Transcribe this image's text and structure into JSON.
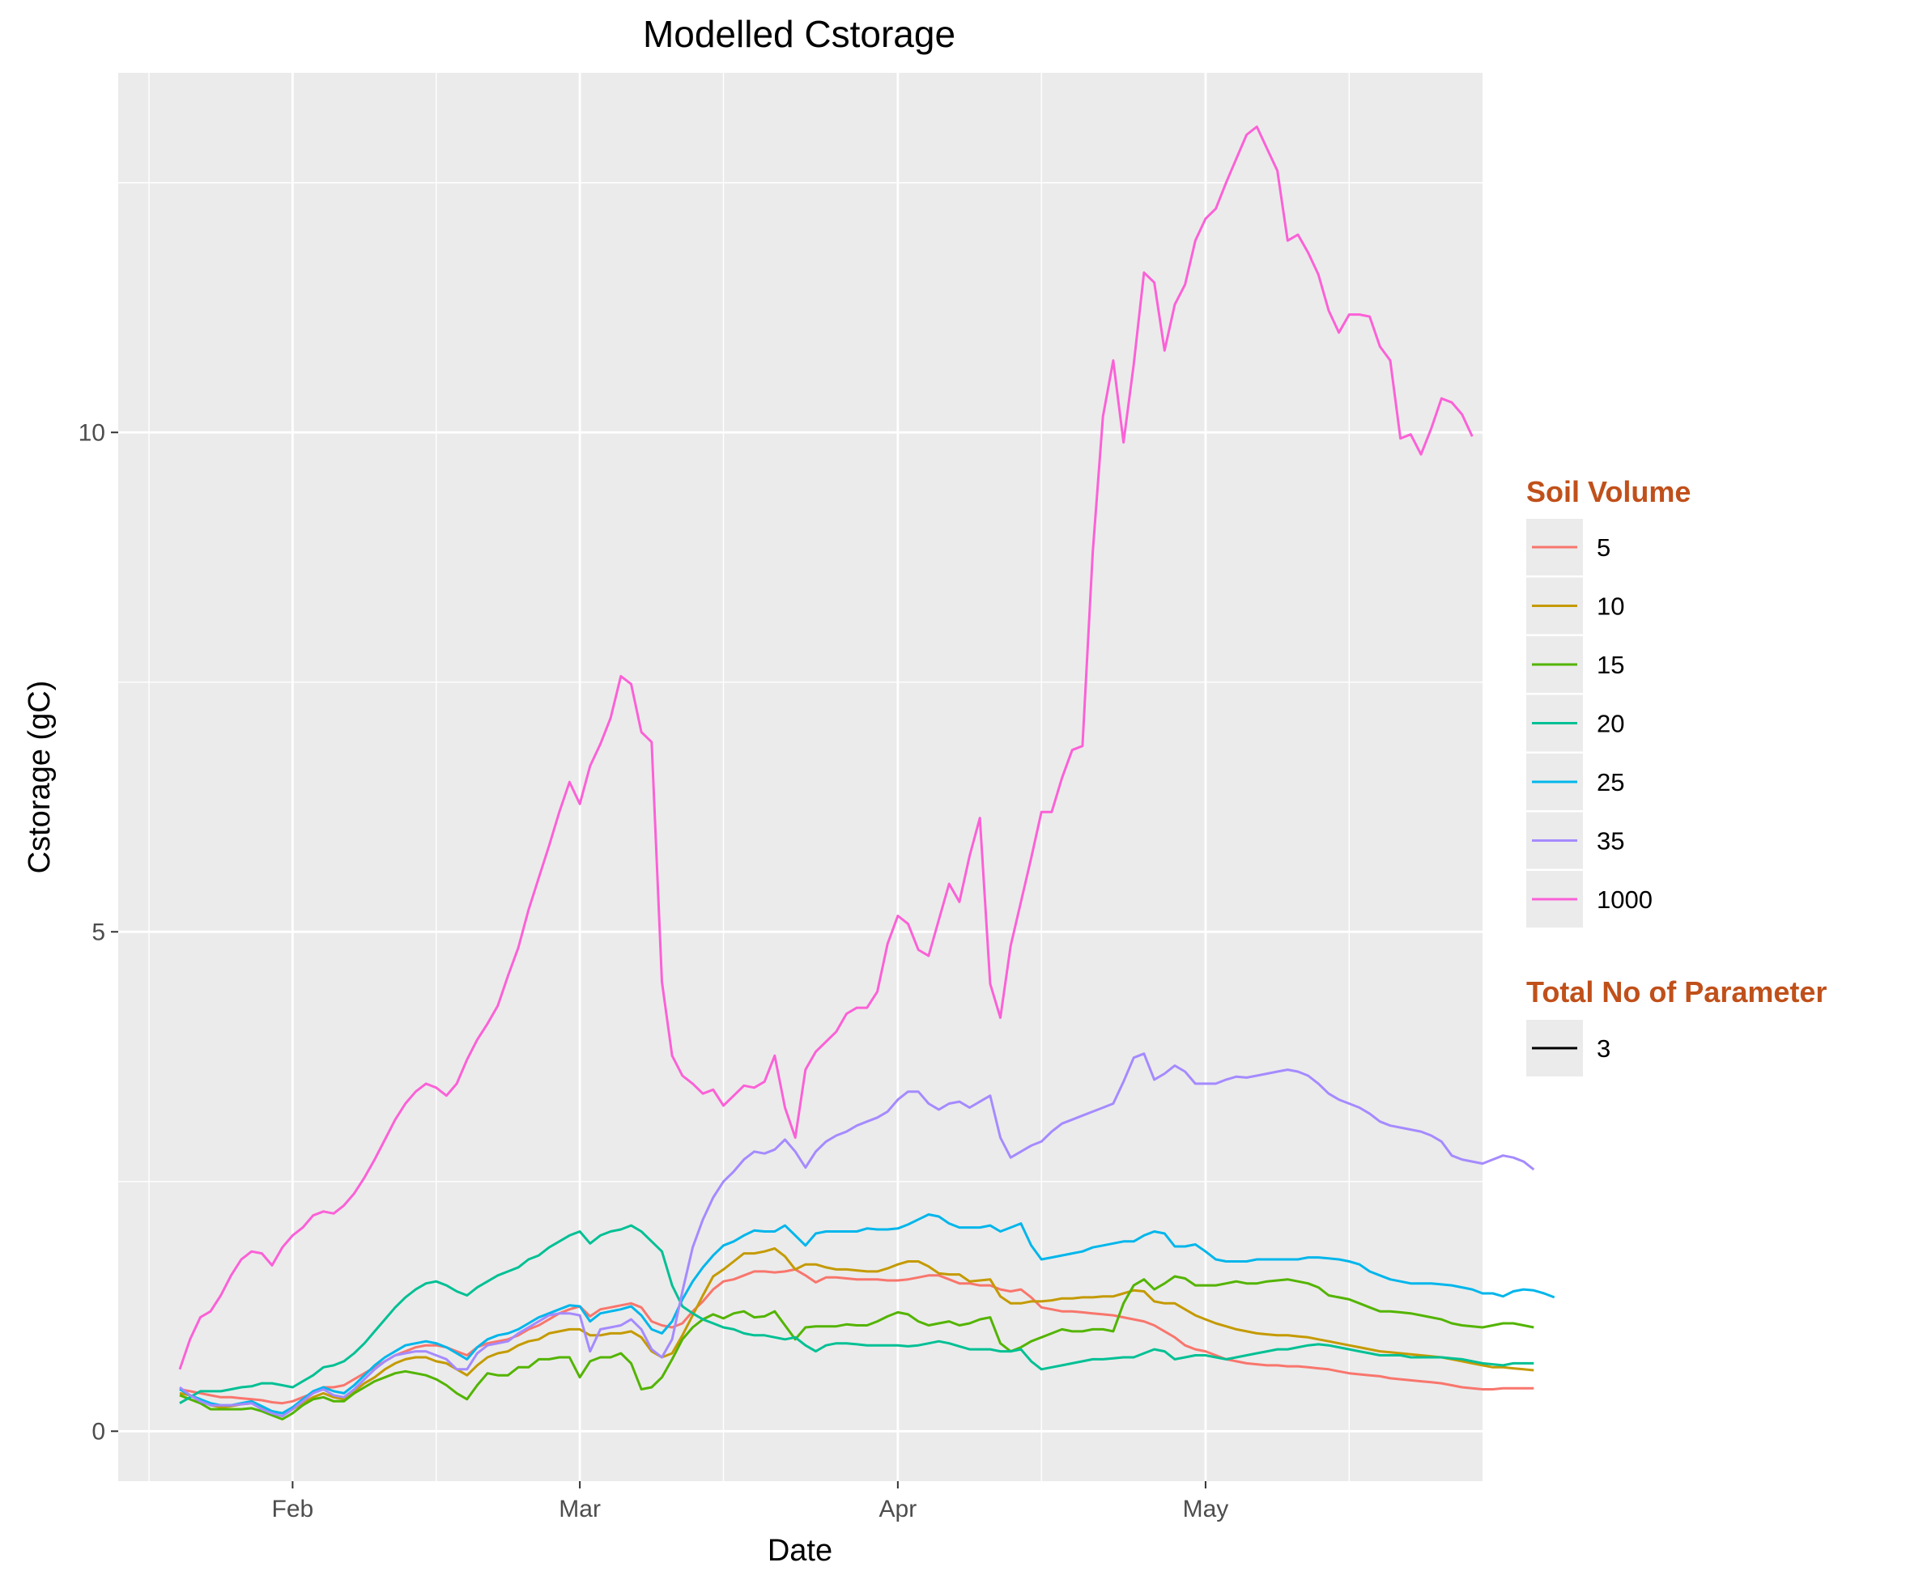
{
  "chart_data": {
    "type": "line",
    "title": "Modelled Cstorage",
    "xlabel": "Date",
    "ylabel": "Cstorage (gC)",
    "x_ticks": [
      {
        "label": "Feb",
        "date": "2019-02-01"
      },
      {
        "label": "Mar",
        "date": "2019-03-01"
      },
      {
        "label": "Apr",
        "date": "2019-04-01"
      },
      {
        "label": "May",
        "date": "2019-05-01"
      }
    ],
    "x_range": [
      "2019-01-15",
      "2019-05-28"
    ],
    "x_minor_dates": [
      "2019-01-18",
      "2019-02-15",
      "2019-03-15",
      "2019-04-15",
      "2019-05-15"
    ],
    "y_ticks": [
      0,
      5,
      10
    ],
    "y_minor": [
      2.5,
      7.5,
      12.5
    ],
    "ylim": [
      -0.5,
      13.6
    ],
    "grid": true,
    "legend_position": "right",
    "color_legend": {
      "title": "Soil Volume",
      "entries": [
        "5",
        "10",
        "15",
        "20",
        "25",
        "35",
        "1000"
      ]
    },
    "linetype_legend": {
      "title": "Total No of Parameter",
      "entries": [
        "3"
      ]
    },
    "start_date": "2019-01-21",
    "step_days": 1,
    "series": [
      {
        "name": "5",
        "color": "#F8766D",
        "values": [
          0.42,
          0.4,
          0.38,
          0.36,
          0.34,
          0.34,
          0.33,
          0.32,
          0.31,
          0.29,
          0.28,
          0.3,
          0.34,
          0.38,
          0.44,
          0.44,
          0.46,
          0.52,
          0.58,
          0.64,
          0.7,
          0.76,
          0.8,
          0.84,
          0.86,
          0.86,
          0.84,
          0.8,
          0.76,
          0.84,
          0.88,
          0.9,
          0.92,
          0.96,
          1.02,
          1.06,
          1.12,
          1.18,
          1.22,
          1.25,
          1.15,
          1.22,
          1.24,
          1.26,
          1.28,
          1.24,
          1.1,
          1.06,
          1.04,
          1.08,
          1.2,
          1.3,
          1.42,
          1.5,
          1.52,
          1.56,
          1.6,
          1.6,
          1.59,
          1.6,
          1.62,
          1.56,
          1.49,
          1.54,
          1.54,
          1.53,
          1.52,
          1.52,
          1.52,
          1.51,
          1.51,
          1.52,
          1.54,
          1.56,
          1.56,
          1.52,
          1.48,
          1.48,
          1.46,
          1.46,
          1.42,
          1.4,
          1.42,
          1.34,
          1.24,
          1.22,
          1.2,
          1.2,
          1.19,
          1.18,
          1.17,
          1.16,
          1.14,
          1.12,
          1.1,
          1.06,
          1.0,
          0.94,
          0.86,
          0.82,
          0.8,
          0.76,
          0.72,
          0.7,
          0.68,
          0.67,
          0.66,
          0.66,
          0.65,
          0.65,
          0.64,
          0.63,
          0.62,
          0.6,
          0.58,
          0.57,
          0.56,
          0.55,
          0.53,
          0.52,
          0.51,
          0.5,
          0.49,
          0.48,
          0.46,
          0.44,
          0.43,
          0.42,
          0.42,
          0.43,
          0.43,
          0.43,
          0.43
        ]
      },
      {
        "name": "10",
        "color": "#C49A00",
        "values": [
          0.38,
          0.36,
          0.32,
          0.26,
          0.24,
          0.25,
          0.27,
          0.28,
          0.24,
          0.2,
          0.18,
          0.22,
          0.28,
          0.34,
          0.38,
          0.34,
          0.32,
          0.4,
          0.48,
          0.54,
          0.62,
          0.68,
          0.72,
          0.74,
          0.74,
          0.7,
          0.68,
          0.62,
          0.56,
          0.66,
          0.74,
          0.78,
          0.8,
          0.86,
          0.9,
          0.92,
          0.98,
          1.0,
          1.02,
          1.02,
          0.96,
          0.96,
          0.98,
          0.98,
          1.0,
          0.94,
          0.8,
          0.74,
          0.78,
          0.96,
          1.16,
          1.36,
          1.55,
          1.62,
          1.7,
          1.78,
          1.78,
          1.8,
          1.83,
          1.75,
          1.62,
          1.67,
          1.67,
          1.64,
          1.62,
          1.62,
          1.61,
          1.6,
          1.6,
          1.63,
          1.67,
          1.7,
          1.7,
          1.65,
          1.58,
          1.57,
          1.57,
          1.5,
          1.51,
          1.52,
          1.35,
          1.28,
          1.28,
          1.3,
          1.3,
          1.31,
          1.33,
          1.33,
          1.34,
          1.34,
          1.35,
          1.35,
          1.38,
          1.41,
          1.4,
          1.3,
          1.28,
          1.28,
          1.22,
          1.16,
          1.12,
          1.08,
          1.05,
          1.02,
          1.0,
          0.98,
          0.97,
          0.96,
          0.96,
          0.95,
          0.94,
          0.92,
          0.9,
          0.88,
          0.86,
          0.84,
          0.82,
          0.8,
          0.79,
          0.78,
          0.77,
          0.76,
          0.75,
          0.74,
          0.72,
          0.7,
          0.68,
          0.66,
          0.64,
          0.64,
          0.63,
          0.62,
          0.61
        ]
      },
      {
        "name": "15",
        "color": "#53B400",
        "values": [
          0.36,
          0.32,
          0.28,
          0.22,
          0.22,
          0.22,
          0.22,
          0.23,
          0.2,
          0.16,
          0.12,
          0.18,
          0.26,
          0.32,
          0.34,
          0.3,
          0.3,
          0.38,
          0.44,
          0.5,
          0.54,
          0.58,
          0.6,
          0.58,
          0.56,
          0.52,
          0.46,
          0.38,
          0.32,
          0.46,
          0.58,
          0.56,
          0.56,
          0.64,
          0.64,
          0.72,
          0.72,
          0.74,
          0.74,
          0.54,
          0.7,
          0.74,
          0.74,
          0.78,
          0.68,
          0.42,
          0.44,
          0.54,
          0.72,
          0.92,
          1.04,
          1.12,
          1.17,
          1.13,
          1.18,
          1.2,
          1.14,
          1.15,
          1.2,
          1.06,
          0.92,
          1.04,
          1.05,
          1.05,
          1.05,
          1.07,
          1.06,
          1.06,
          1.1,
          1.15,
          1.19,
          1.17,
          1.1,
          1.06,
          1.08,
          1.1,
          1.06,
          1.08,
          1.12,
          1.14,
          0.88,
          0.8,
          0.84,
          0.9,
          0.94,
          0.98,
          1.02,
          1.0,
          1.0,
          1.02,
          1.02,
          1.0,
          1.28,
          1.46,
          1.52,
          1.42,
          1.48,
          1.55,
          1.53,
          1.46,
          1.46,
          1.46,
          1.48,
          1.5,
          1.48,
          1.48,
          1.5,
          1.51,
          1.52,
          1.5,
          1.48,
          1.44,
          1.36,
          1.34,
          1.32,
          1.28,
          1.24,
          1.2,
          1.2,
          1.19,
          1.18,
          1.16,
          1.14,
          1.12,
          1.08,
          1.06,
          1.05,
          1.04,
          1.06,
          1.08,
          1.08,
          1.06,
          1.04
        ]
      },
      {
        "name": "20",
        "color": "#00C094",
        "values": [
          0.28,
          0.34,
          0.4,
          0.4,
          0.4,
          0.42,
          0.44,
          0.45,
          0.48,
          0.48,
          0.46,
          0.44,
          0.5,
          0.56,
          0.64,
          0.66,
          0.7,
          0.78,
          0.88,
          1.0,
          1.12,
          1.24,
          1.34,
          1.42,
          1.48,
          1.5,
          1.46,
          1.4,
          1.36,
          1.44,
          1.5,
          1.56,
          1.6,
          1.64,
          1.72,
          1.76,
          1.84,
          1.9,
          1.96,
          2.0,
          1.88,
          1.96,
          2.0,
          2.02,
          2.06,
          2.0,
          1.9,
          1.8,
          1.46,
          1.25,
          1.18,
          1.12,
          1.08,
          1.04,
          1.02,
          0.98,
          0.96,
          0.96,
          0.94,
          0.92,
          0.94,
          0.86,
          0.8,
          0.86,
          0.88,
          0.88,
          0.87,
          0.86,
          0.86,
          0.86,
          0.86,
          0.85,
          0.86,
          0.88,
          0.9,
          0.88,
          0.85,
          0.82,
          0.82,
          0.82,
          0.8,
          0.8,
          0.82,
          0.7,
          0.62,
          0.64,
          0.66,
          0.68,
          0.7,
          0.72,
          0.72,
          0.73,
          0.74,
          0.74,
          0.78,
          0.82,
          0.8,
          0.72,
          0.74,
          0.76,
          0.76,
          0.74,
          0.72,
          0.74,
          0.76,
          0.78,
          0.8,
          0.82,
          0.82,
          0.84,
          0.86,
          0.87,
          0.86,
          0.84,
          0.82,
          0.8,
          0.78,
          0.76,
          0.76,
          0.76,
          0.74,
          0.74,
          0.74,
          0.74,
          0.73,
          0.72,
          0.7,
          0.68,
          0.67,
          0.66,
          0.68,
          0.68,
          0.68
        ]
      },
      {
        "name": "25",
        "color": "#00B6EB",
        "values": [
          0.42,
          0.36,
          0.32,
          0.28,
          0.26,
          0.26,
          0.28,
          0.3,
          0.25,
          0.2,
          0.18,
          0.24,
          0.32,
          0.4,
          0.44,
          0.4,
          0.38,
          0.46,
          0.56,
          0.66,
          0.74,
          0.8,
          0.86,
          0.88,
          0.9,
          0.88,
          0.84,
          0.78,
          0.72,
          0.84,
          0.92,
          0.96,
          0.98,
          1.02,
          1.08,
          1.14,
          1.18,
          1.22,
          1.26,
          1.25,
          1.1,
          1.18,
          1.2,
          1.22,
          1.25,
          1.16,
          1.02,
          0.98,
          1.1,
          1.32,
          1.5,
          1.64,
          1.76,
          1.86,
          1.9,
          1.96,
          2.01,
          2.0,
          2.0,
          2.06,
          1.96,
          1.86,
          1.98,
          2.0,
          2.0,
          2.0,
          2.0,
          2.03,
          2.02,
          2.02,
          2.03,
          2.07,
          2.12,
          2.17,
          2.15,
          2.08,
          2.04,
          2.04,
          2.04,
          2.06,
          2.0,
          2.04,
          2.08,
          1.86,
          1.72,
          1.74,
          1.76,
          1.78,
          1.8,
          1.84,
          1.86,
          1.88,
          1.9,
          1.9,
          1.96,
          2.0,
          1.98,
          1.85,
          1.85,
          1.87,
          1.8,
          1.72,
          1.7,
          1.7,
          1.7,
          1.72,
          1.72,
          1.72,
          1.72,
          1.72,
          1.74,
          1.74,
          1.73,
          1.72,
          1.7,
          1.67,
          1.6,
          1.56,
          1.52,
          1.5,
          1.48,
          1.48,
          1.48,
          1.47,
          1.46,
          1.44,
          1.42,
          1.38,
          1.38,
          1.35,
          1.4,
          1.42,
          1.41,
          1.38,
          1.34
        ]
      },
      {
        "name": "35",
        "color": "#A58AFF",
        "values": [
          0.44,
          0.36,
          0.3,
          0.26,
          0.26,
          0.26,
          0.27,
          0.28,
          0.22,
          0.18,
          0.15,
          0.22,
          0.3,
          0.38,
          0.42,
          0.36,
          0.34,
          0.42,
          0.52,
          0.62,
          0.7,
          0.76,
          0.78,
          0.8,
          0.8,
          0.76,
          0.72,
          0.62,
          0.62,
          0.78,
          0.86,
          0.88,
          0.9,
          0.98,
          1.04,
          1.1,
          1.16,
          1.18,
          1.18,
          1.16,
          0.8,
          1.02,
          1.04,
          1.06,
          1.12,
          1.02,
          0.82,
          0.74,
          0.92,
          1.4,
          1.84,
          2.12,
          2.34,
          2.5,
          2.6,
          2.72,
          2.8,
          2.78,
          2.82,
          2.92,
          2.8,
          2.64,
          2.8,
          2.9,
          2.96,
          3.0,
          3.06,
          3.1,
          3.14,
          3.2,
          3.32,
          3.4,
          3.4,
          3.28,
          3.22,
          3.28,
          3.3,
          3.24,
          3.3,
          3.36,
          2.94,
          2.74,
          2.8,
          2.86,
          2.9,
          3.0,
          3.08,
          3.12,
          3.16,
          3.2,
          3.24,
          3.28,
          3.5,
          3.74,
          3.78,
          3.52,
          3.58,
          3.66,
          3.6,
          3.48,
          3.48,
          3.48,
          3.52,
          3.55,
          3.54,
          3.56,
          3.58,
          3.6,
          3.62,
          3.6,
          3.56,
          3.48,
          3.38,
          3.32,
          3.28,
          3.24,
          3.18,
          3.1,
          3.06,
          3.04,
          3.02,
          3.0,
          2.96,
          2.9,
          2.76,
          2.72,
          2.7,
          2.68,
          2.72,
          2.76,
          2.74,
          2.7,
          2.62
        ]
      },
      {
        "name": "1000",
        "color": "#FB61D7",
        "values": [
          0.62,
          0.92,
          1.14,
          1.2,
          1.36,
          1.56,
          1.72,
          1.8,
          1.78,
          1.66,
          1.84,
          1.96,
          2.04,
          2.16,
          2.2,
          2.18,
          2.26,
          2.38,
          2.54,
          2.72,
          2.92,
          3.12,
          3.28,
          3.4,
          3.48,
          3.44,
          3.36,
          3.48,
          3.72,
          3.92,
          4.08,
          4.26,
          4.56,
          4.84,
          5.22,
          5.54,
          5.86,
          6.2,
          6.5,
          6.28,
          6.66,
          6.88,
          7.14,
          7.56,
          7.48,
          7.0,
          6.9,
          4.5,
          3.76,
          3.56,
          3.48,
          3.38,
          3.42,
          3.26,
          3.36,
          3.46,
          3.44,
          3.5,
          3.76,
          3.24,
          2.94,
          3.62,
          3.8,
          3.9,
          4.0,
          4.18,
          4.24,
          4.24,
          4.4,
          4.88,
          5.16,
          5.08,
          4.82,
          4.76,
          5.12,
          5.48,
          5.3,
          5.76,
          6.14,
          4.48,
          4.14,
          4.86,
          5.3,
          5.74,
          6.2,
          6.2,
          6.54,
          6.82,
          6.86,
          8.8,
          10.16,
          10.72,
          9.9,
          10.68,
          11.6,
          11.5,
          10.82,
          11.28,
          11.48,
          11.92,
          12.14,
          12.24,
          12.5,
          12.74,
          12.98,
          13.06,
          12.84,
          12.62,
          11.92,
          11.98,
          11.8,
          11.58,
          11.22,
          11.0,
          11.18,
          11.18,
          11.16,
          10.86,
          10.72,
          9.94,
          9.98,
          9.78,
          10.04,
          10.34,
          10.3,
          10.18,
          9.96
        ]
      }
    ]
  }
}
